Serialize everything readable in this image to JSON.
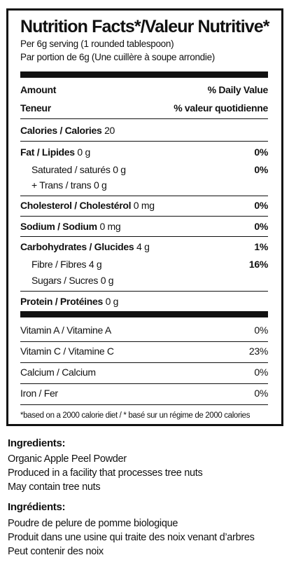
{
  "label": {
    "title": "Nutrition Facts*/Valeur Nutritive*",
    "serving_en": "Per 6g serving (1 rounded tablespoon)",
    "serving_fr": "Par portion de 6g (Une cuillère à soupe arrondie)",
    "amount_en": "Amount",
    "dv_en": "% Daily Value",
    "amount_fr": "Teneur",
    "dv_fr": "% valeur quotidienne",
    "calories": {
      "name": "Calories / Calories",
      "value": "20"
    },
    "fat": {
      "name": "Fat / Lipides",
      "amount": "0 g",
      "dv": "0%"
    },
    "saturated": {
      "name": "Saturated / saturés",
      "amount": "0 g",
      "dv": "0%"
    },
    "trans": {
      "name": "+ Trans / trans",
      "amount": "0 g"
    },
    "cholesterol": {
      "name": "Cholesterol / Cholestérol",
      "amount": "0 mg",
      "dv": "0%"
    },
    "sodium": {
      "name": "Sodium / Sodium",
      "amount": "0 mg",
      "dv": "0%"
    },
    "carbohydrates": {
      "name": "Carbohydrates / Glucides",
      "amount": "4 g",
      "dv": "1%"
    },
    "fibre": {
      "name": "Fibre / Fibres",
      "amount": "4 g",
      "dv": "16%"
    },
    "sugars": {
      "name": "Sugars / Sucres",
      "amount": "0 g"
    },
    "protein": {
      "name": "Protein / Protéines",
      "amount": "0 g"
    },
    "vitamins": [
      {
        "name": "Vitamin A / Vitamine A",
        "dv": "0%"
      },
      {
        "name": "Vitamin C / Vitamine C",
        "dv": "23%"
      },
      {
        "name": "Calcium / Calcium",
        "dv": "0%"
      },
      {
        "name": "Iron / Fer",
        "dv": "0%"
      }
    ],
    "footnote": "*based on a 2000 calorie diet / * basé sur un régime de 2000 calories"
  },
  "ingredients_en": {
    "heading": "Ingredients:",
    "lines": [
      "Organic Apple Peel Powder",
      "Produced in a facility that processes tree nuts",
      "May contain tree nuts"
    ]
  },
  "ingredients_fr": {
    "heading": "Ingrédients:",
    "lines": [
      "Poudre de pelure de pomme biologique",
      "Produit dans une usine qui traite des noix venant d’arbres",
      "Peut contenir des noix"
    ]
  }
}
